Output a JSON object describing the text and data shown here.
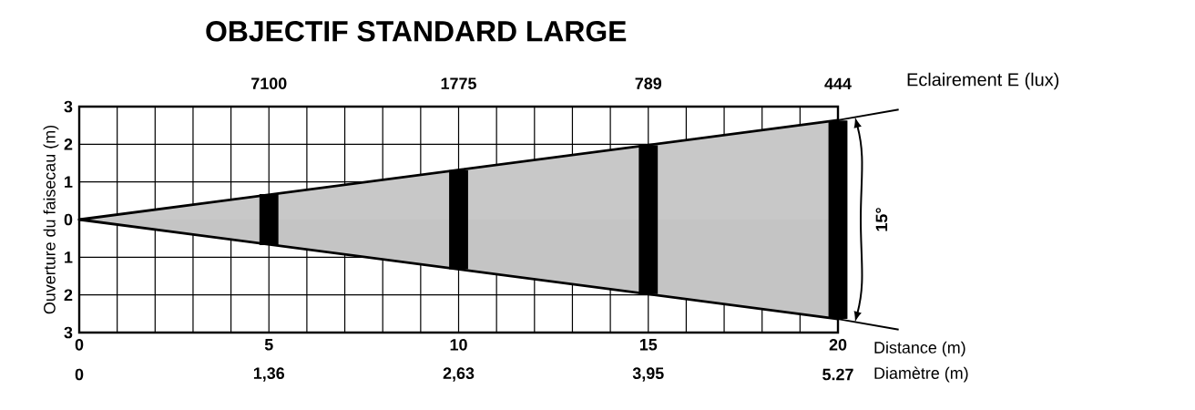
{
  "chart_data": {
    "type": "bar",
    "title": "OBJECTIF STANDARD LARGE",
    "xlabel": "Distance (m)",
    "ylabel": "Ouverture du faisecau (m)",
    "xlim": [
      0,
      20
    ],
    "ylim": [
      -3,
      3
    ],
    "xticks": [
      0,
      {
        "value": 1,
        "label": null
      },
      {
        "value": 2,
        "label": null
      },
      {
        "value": 3,
        "label": null
      },
      {
        "value": 4,
        "label": null
      },
      5,
      {
        "value": 6,
        "label": null
      },
      {
        "value": 7,
        "label": null
      },
      {
        "value": 8,
        "label": null
      },
      {
        "value": 9,
        "label": null
      },
      10,
      {
        "value": 11,
        "label": null
      },
      {
        "value": 12,
        "label": null
      },
      {
        "value": 13,
        "label": null
      },
      {
        "value": 14,
        "label": null
      },
      15,
      {
        "value": 16,
        "label": null
      },
      {
        "value": 17,
        "label": null
      },
      {
        "value": 18,
        "label": null
      },
      {
        "value": 19,
        "label": null
      },
      20
    ],
    "yticks": [
      {
        "value": -3,
        "label": "3"
      },
      {
        "value": -2,
        "label": "2"
      },
      {
        "value": -1,
        "label": "1"
      },
      0,
      1,
      2,
      3
    ],
    "grid": true,
    "series": [
      {
        "type": "area",
        "color": "#c8c8c8",
        "x": [
          0,
          20
        ],
        "values": [
          0,
          2.64
        ]
      },
      {
        "type": "area",
        "color": "#c4c4c4",
        "x": [
          0,
          20
        ],
        "values": [
          0,
          -2.64
        ]
      },
      {
        "color": "#000000",
        "x": [
          0,
          5,
          10,
          15,
          20
        ],
        "base": [
          null,
          -0.68,
          -1.32,
          -1.98,
          -2.64
        ],
        "values": [
          0,
          1.36,
          2.63,
          3.95,
          5.27
        ]
      }
    ],
    "annotations": [
      "15°",
      "Diamètre (m)",
      "Eclairement E (lux)",
      "7100",
      "1775",
      "789",
      "444",
      "0",
      "1,36",
      "2,63",
      "3,95",
      "5.27"
    ]
  }
}
